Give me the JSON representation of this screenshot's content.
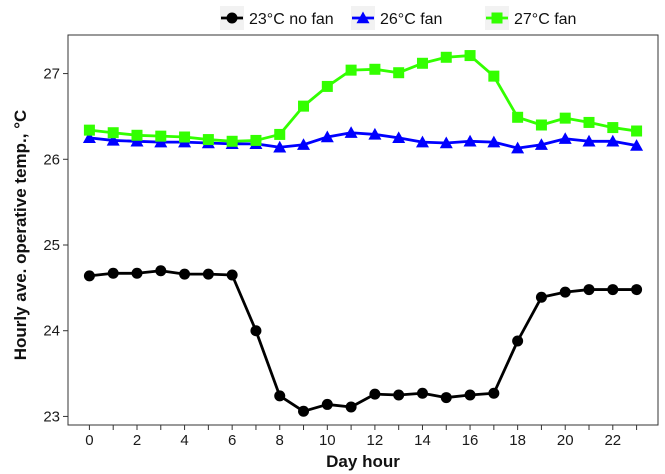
{
  "chart_data": {
    "type": "line",
    "title": "",
    "xlabel": "Day hour",
    "ylabel": "Hourly ave. operative temp., °C",
    "x": [
      0,
      1,
      2,
      3,
      4,
      5,
      6,
      7,
      8,
      9,
      10,
      11,
      12,
      13,
      14,
      15,
      16,
      17,
      18,
      19,
      20,
      21,
      22,
      23
    ],
    "xlim": [
      -0.9,
      23.9
    ],
    "ylim": [
      22.9,
      27.45
    ],
    "xticks": [
      0,
      2,
      4,
      6,
      8,
      10,
      12,
      14,
      16,
      18,
      20,
      22
    ],
    "xtick_labels": [
      "0",
      "2",
      "4",
      "6",
      "8",
      "10",
      "12",
      "14",
      "16",
      "18",
      "20",
      "22"
    ],
    "yticks": [
      23,
      24,
      25,
      26,
      27
    ],
    "ytick_labels": [
      "23",
      "24",
      "25",
      "26",
      "27"
    ],
    "grid": false,
    "legend_position": "top",
    "series": [
      {
        "name": "23°C no fan",
        "color": "#000000",
        "marker": "circle",
        "values": [
          24.64,
          24.67,
          24.67,
          24.7,
          24.66,
          24.66,
          24.65,
          24.0,
          23.24,
          23.06,
          23.14,
          23.11,
          23.26,
          23.25,
          23.27,
          23.22,
          23.25,
          23.27,
          23.88,
          24.39,
          24.45,
          24.48,
          24.48,
          24.48
        ]
      },
      {
        "name": "26°C fan",
        "color": "#0000ff",
        "marker": "triangle",
        "values": [
          26.25,
          26.22,
          26.21,
          26.2,
          26.2,
          26.19,
          26.18,
          26.18,
          26.14,
          26.17,
          26.26,
          26.31,
          26.29,
          26.25,
          26.2,
          26.19,
          26.21,
          26.2,
          26.13,
          26.17,
          26.24,
          26.21,
          26.21,
          26.16
        ]
      },
      {
        "name": "27°C fan",
        "color": "#33ff00",
        "marker": "square",
        "values": [
          26.34,
          26.31,
          26.28,
          26.27,
          26.26,
          26.23,
          26.21,
          26.22,
          26.29,
          26.62,
          26.85,
          27.04,
          27.05,
          27.01,
          27.12,
          27.19,
          27.21,
          26.97,
          26.49,
          26.4,
          26.48,
          26.43,
          26.37,
          26.33
        ]
      }
    ]
  }
}
